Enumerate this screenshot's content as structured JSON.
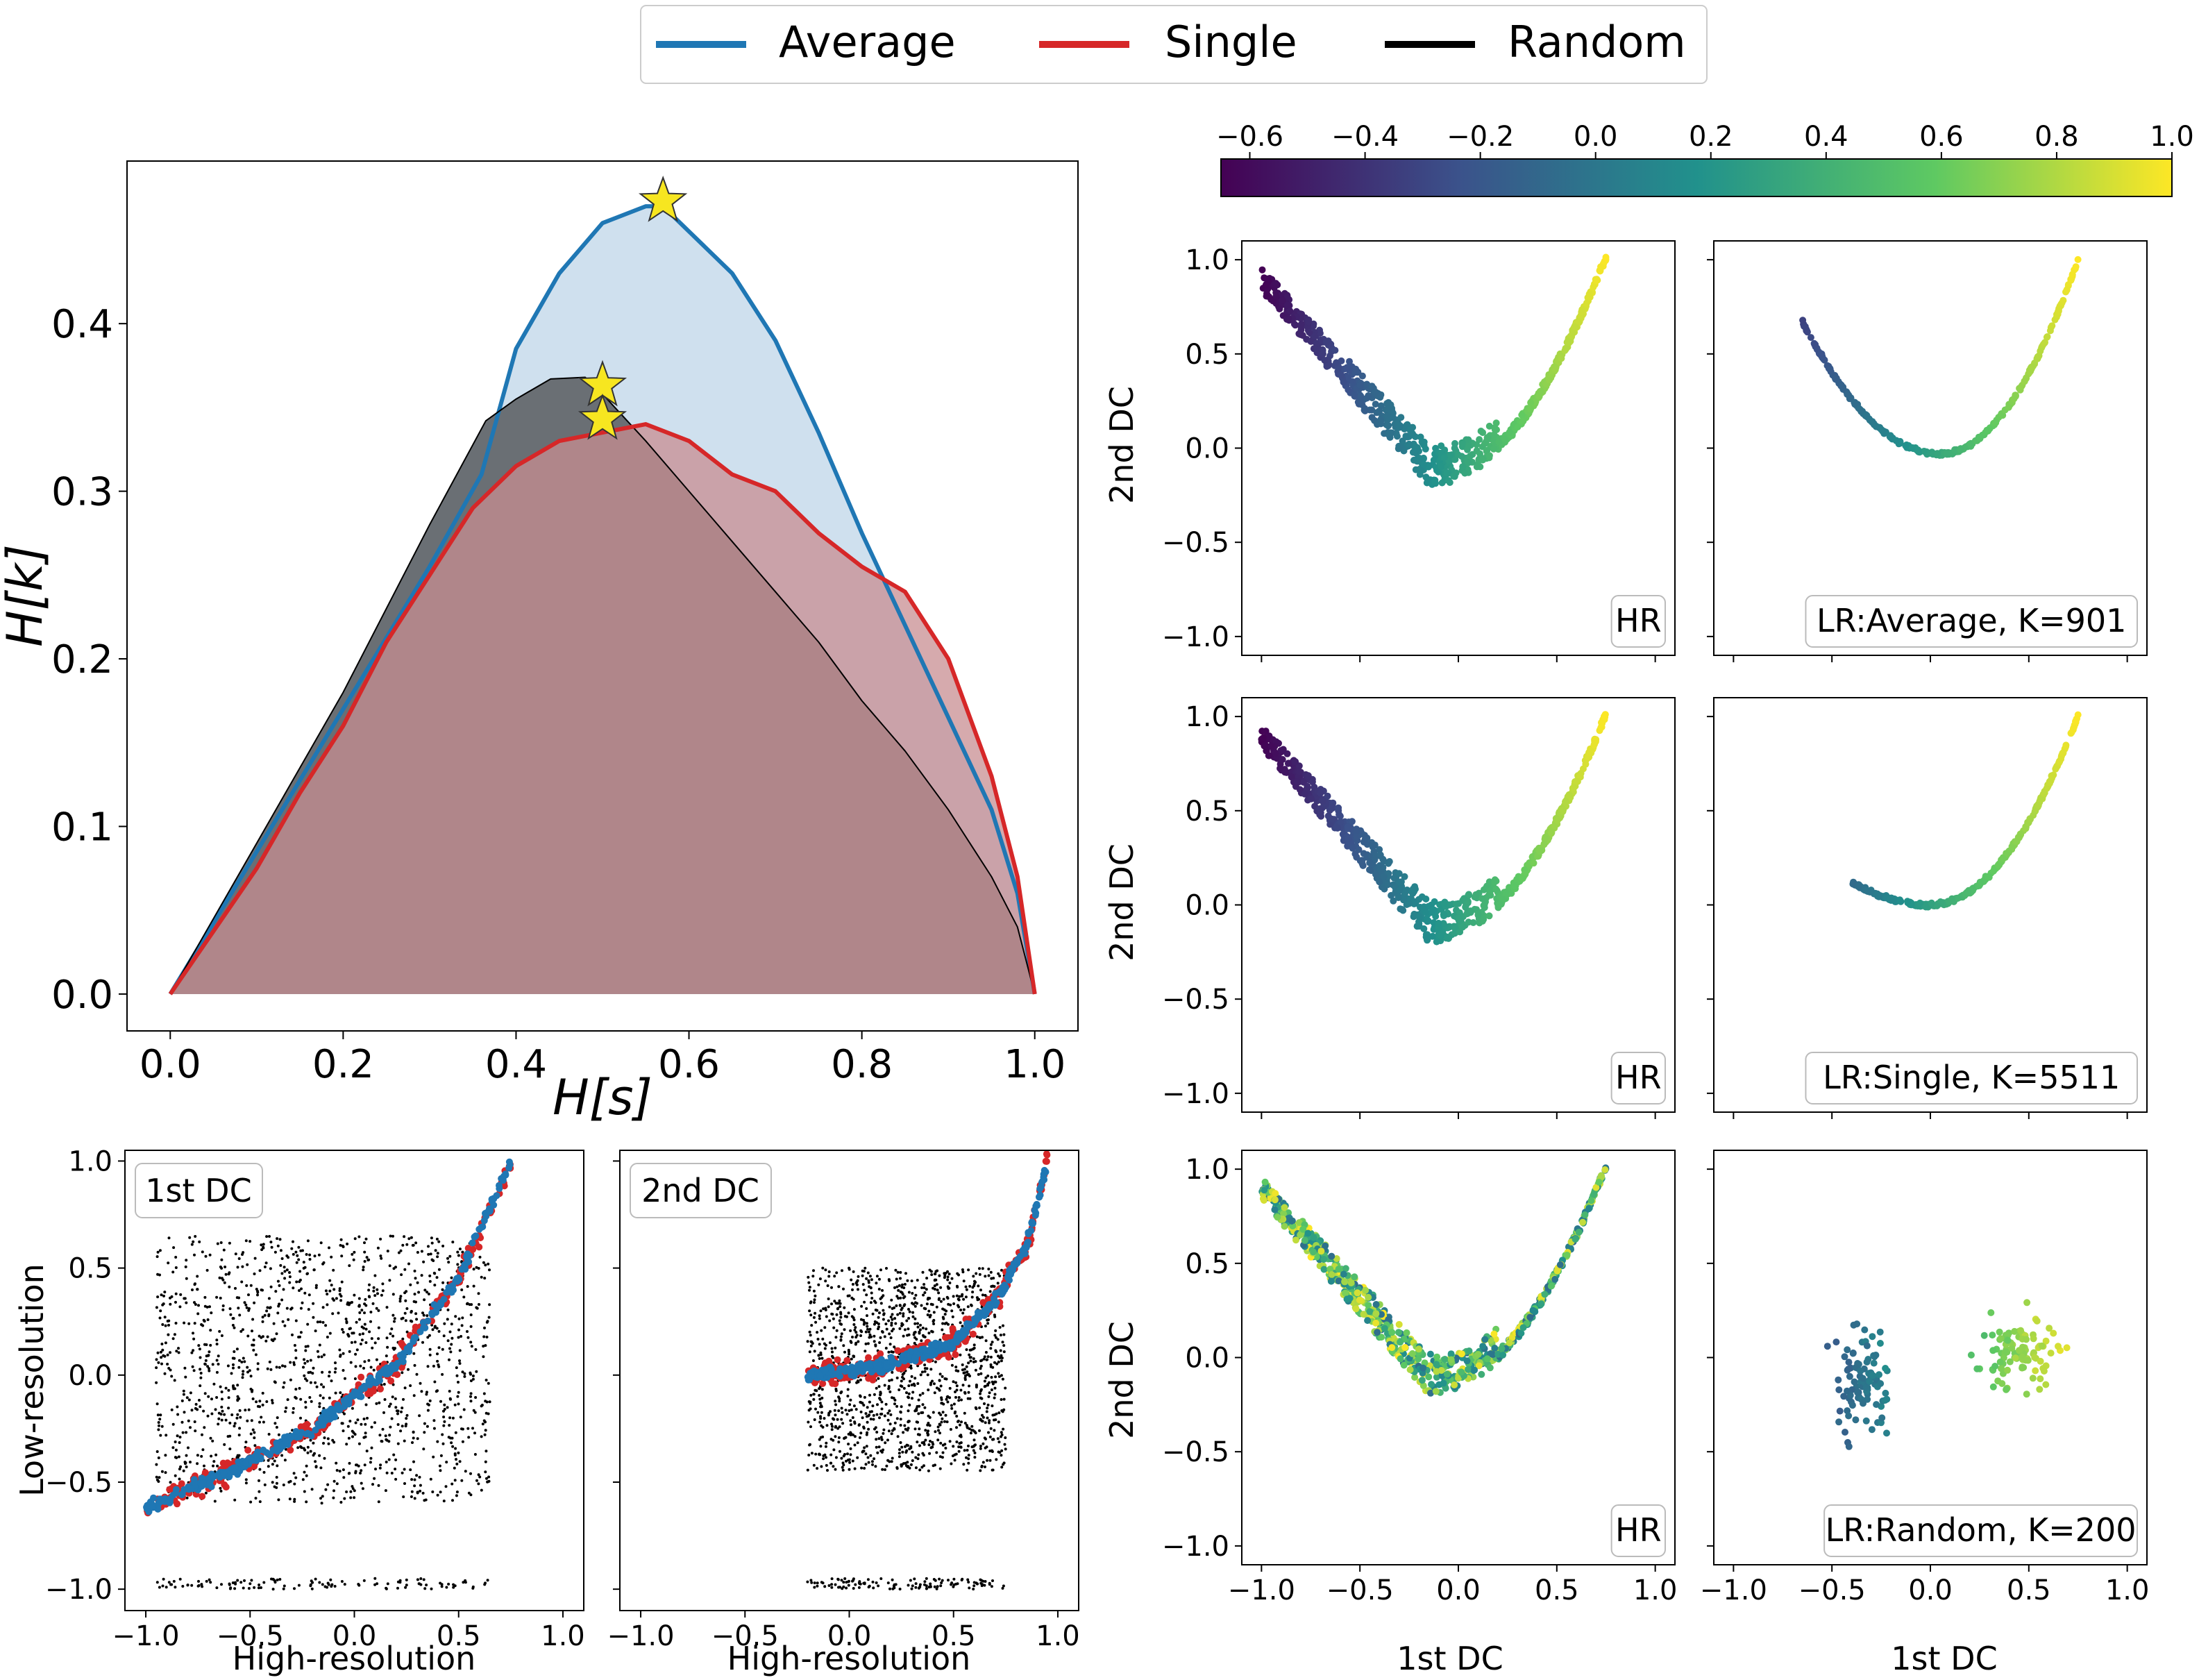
{
  "legend": {
    "items": [
      {
        "label": "Average",
        "color": "#1f77b4"
      },
      {
        "label": "Single",
        "color": "#d62728"
      },
      {
        "label": "Random",
        "color": "#000000"
      }
    ]
  },
  "colorbar": {
    "ticks": [
      "−0.6",
      "−0.4",
      "−0.2",
      "0.0",
      "0.2",
      "0.4",
      "0.6",
      "0.8",
      "1.0"
    ],
    "range": [
      -0.65,
      1.0
    ],
    "colors": [
      "#440154",
      "#3b528b",
      "#21918c",
      "#5ec962",
      "#fde725"
    ]
  },
  "chart_data": [
    {
      "id": "main",
      "type": "area",
      "xlabel": "H[s]",
      "ylabel": "H[k]",
      "xlim": [
        -0.05,
        1.05
      ],
      "ylim": [
        -0.022,
        0.497
      ],
      "xticks": [
        "0.0",
        "0.2",
        "0.4",
        "0.6",
        "0.8",
        "1.0"
      ],
      "yticks": [
        "0.0",
        "0.1",
        "0.2",
        "0.3",
        "0.4"
      ],
      "series": [
        {
          "name": "Average",
          "color": "#1f77b4",
          "fill": "#cfe0ee",
          "x": [
            0.0,
            0.1,
            0.2,
            0.3,
            0.36,
            0.4,
            0.45,
            0.5,
            0.55,
            0.57,
            0.6,
            0.65,
            0.7,
            0.75,
            0.8,
            0.85,
            0.9,
            0.95,
            0.98,
            1.0
          ],
          "y": [
            0.0,
            0.085,
            0.17,
            0.255,
            0.31,
            0.385,
            0.43,
            0.46,
            0.47,
            0.47,
            0.455,
            0.43,
            0.39,
            0.335,
            0.275,
            0.22,
            0.165,
            0.11,
            0.06,
            0.0
          ]
        },
        {
          "name": "Random",
          "color": "#000000",
          "fill": "#6a6f74",
          "x": [
            0.0,
            0.1,
            0.2,
            0.3,
            0.365,
            0.4,
            0.44,
            0.48,
            0.5,
            0.55,
            0.6,
            0.65,
            0.7,
            0.75,
            0.8,
            0.85,
            0.9,
            0.95,
            0.98,
            1.0
          ],
          "y": [
            0.0,
            0.09,
            0.18,
            0.28,
            0.342,
            0.355,
            0.367,
            0.368,
            0.358,
            0.33,
            0.3,
            0.27,
            0.24,
            0.21,
            0.175,
            0.145,
            0.11,
            0.07,
            0.04,
            0.0
          ]
        },
        {
          "name": "Single",
          "color": "#d62728",
          "fill": "#c88d92",
          "x": [
            0.0,
            0.1,
            0.15,
            0.2,
            0.25,
            0.3,
            0.35,
            0.4,
            0.45,
            0.5,
            0.55,
            0.6,
            0.65,
            0.7,
            0.75,
            0.8,
            0.85,
            0.9,
            0.95,
            0.98,
            1.0
          ],
          "y": [
            0.0,
            0.075,
            0.12,
            0.16,
            0.21,
            0.25,
            0.29,
            0.315,
            0.33,
            0.335,
            0.34,
            0.33,
            0.31,
            0.3,
            0.275,
            0.255,
            0.24,
            0.2,
            0.13,
            0.07,
            0.0
          ]
        }
      ],
      "stars": [
        {
          "series": "Average",
          "x": 0.57,
          "y": 0.473
        },
        {
          "series": "Random",
          "x": 0.5,
          "y": 0.363
        },
        {
          "series": "Single",
          "x": 0.5,
          "y": 0.343
        }
      ]
    },
    {
      "id": "bl1",
      "type": "scatter",
      "label": "1st DC",
      "xlabel": "High-resolution",
      "ylabel": "Low-resolution",
      "xlim": [
        -1.1,
        1.1
      ],
      "ylim": [
        -1.1,
        1.05
      ],
      "xticks": [
        "−1.0",
        "−0.5",
        "0.0",
        "0.5",
        "1.0"
      ],
      "yticks": [
        "−1.0",
        "−0.5",
        "0.0",
        "0.5",
        "1.0"
      ],
      "random_band": {
        "x": [
          -0.95,
          0.65
        ],
        "y": [
          -0.6,
          0.65
        ]
      },
      "trend": {
        "x": [
          -1.0,
          -0.6,
          -0.2,
          0.2,
          0.5,
          0.75
        ],
        "y": [
          -0.62,
          -0.45,
          -0.25,
          0.05,
          0.45,
          1.0
        ]
      }
    },
    {
      "id": "bl2",
      "type": "scatter",
      "label": "2nd DC",
      "xlabel": "High-resolution",
      "ylabel": "",
      "xlim": [
        -1.1,
        1.1
      ],
      "ylim": [
        -1.1,
        1.05
      ],
      "xticks": [
        "−1.0",
        "−0.5",
        "0.0",
        "0.5",
        "1.0"
      ],
      "yticks": [],
      "random_band": {
        "x": [
          -0.2,
          0.75
        ],
        "y": [
          -0.45,
          0.5
        ]
      },
      "trend": {
        "x": [
          -0.2,
          0.2,
          0.5,
          0.7,
          0.85,
          0.95
        ],
        "y": [
          0.0,
          0.05,
          0.15,
          0.35,
          0.6,
          1.0
        ]
      }
    },
    {
      "id": "scatter_grid",
      "type": "scatter",
      "xlabel": "1st DC",
      "ylabel": "2nd DC",
      "xlim": [
        -1.1,
        1.1
      ],
      "ylim": [
        -1.1,
        1.1
      ],
      "xticks": [
        "−1.0",
        "−0.5",
        "0.0",
        "0.5",
        "1.0"
      ],
      "yticks": [
        "−1.0",
        "−0.5",
        "0.0",
        "0.5",
        "1.0"
      ],
      "panels": [
        {
          "label": "HR",
          "kind": "hr"
        },
        {
          "label": "LR:Average, K=901",
          "kind": "average"
        },
        {
          "label": "HR",
          "kind": "hr"
        },
        {
          "label": "LR:Single, K=5511",
          "kind": "single"
        },
        {
          "label": "HR",
          "kind": "hr_random"
        },
        {
          "label": "LR:Random, K=200",
          "kind": "random"
        }
      ]
    }
  ]
}
